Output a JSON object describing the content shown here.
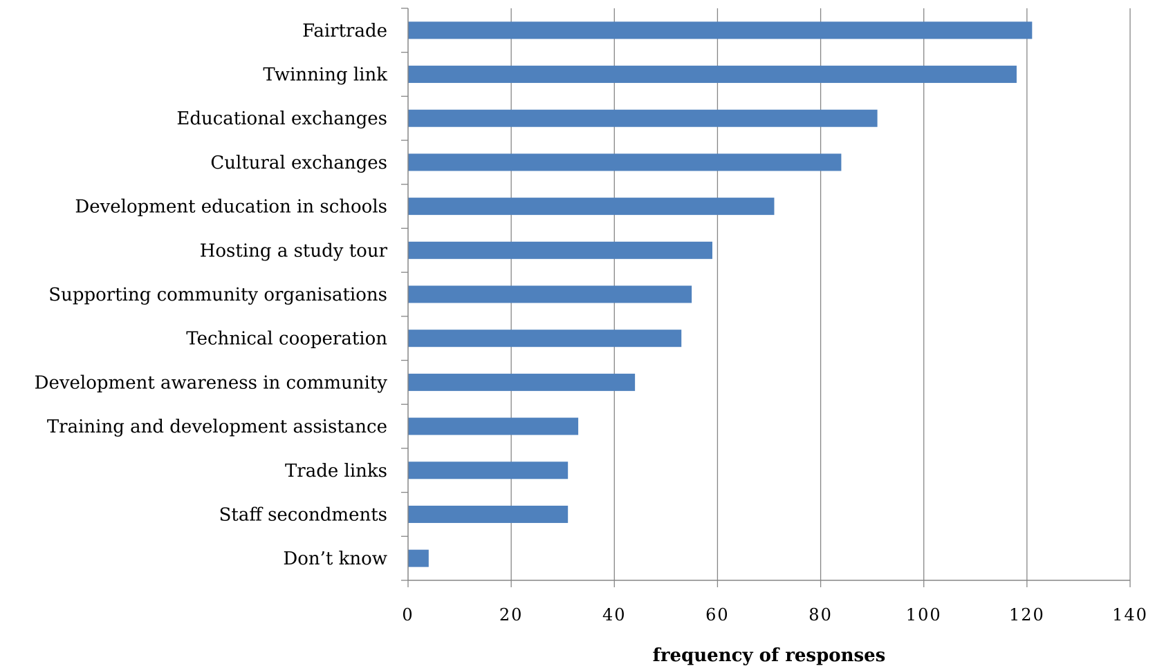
{
  "chart_data": {
    "type": "bar",
    "orientation": "horizontal",
    "categories": [
      "Fairtrade",
      "Twinning link",
      "Educational exchanges",
      "Cultural exchanges",
      "Development education in schools",
      "Hosting a study tour",
      "Supporting community organisations",
      "Technical cooperation",
      "Development awareness in community",
      "Training and development assistance",
      "Trade links",
      "Staff secondments",
      "Don’t know"
    ],
    "values": [
      121,
      118,
      91,
      84,
      71,
      59,
      55,
      53,
      44,
      33,
      31,
      31,
      4
    ],
    "xlabel": "frequency of responses",
    "ylabel": "",
    "xlim": [
      0,
      140
    ],
    "x_ticks": [
      "0",
      "20",
      "40",
      "60",
      "80",
      "100",
      "120",
      "140"
    ],
    "grid": "vertical",
    "legend": "none",
    "colors": {
      "bar": "#4F81BD",
      "grid": "#868686",
      "axis": "#868686"
    }
  }
}
